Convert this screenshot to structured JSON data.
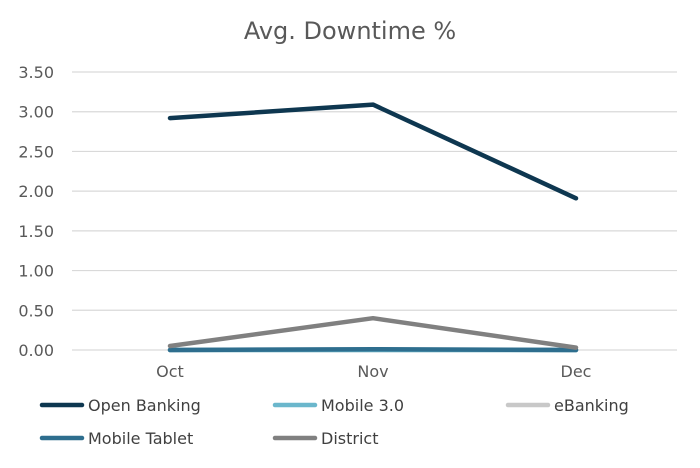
{
  "chart_data": {
    "type": "line",
    "title": "Avg. Downtime %",
    "xlabel": "",
    "ylabel": "",
    "categories": [
      "Oct",
      "Nov",
      "Dec"
    ],
    "ylim": [
      0,
      3.5
    ],
    "y_ticks": [
      "0.00",
      "0.50",
      "1.00",
      "1.50",
      "2.00",
      "2.50",
      "3.00",
      "3.50"
    ],
    "grid": true,
    "legend_position": "bottom",
    "series": [
      {
        "name": "Open Banking",
        "values": [
          2.92,
          3.09,
          1.91
        ],
        "color": "#0E3750"
      },
      {
        "name": "Mobile 3.0",
        "values": [
          0.0,
          0.0,
          0.0
        ],
        "color": "#6BB7CC"
      },
      {
        "name": "eBanking",
        "values": [
          0.0,
          0.0,
          0.0
        ],
        "color": "#C8C8C8"
      },
      {
        "name": "Mobile Tablet",
        "values": [
          0.0,
          0.01,
          0.0
        ],
        "color": "#2E6E8E"
      },
      {
        "name": "District",
        "values": [
          0.05,
          0.4,
          0.03
        ],
        "color": "#808080"
      }
    ]
  }
}
